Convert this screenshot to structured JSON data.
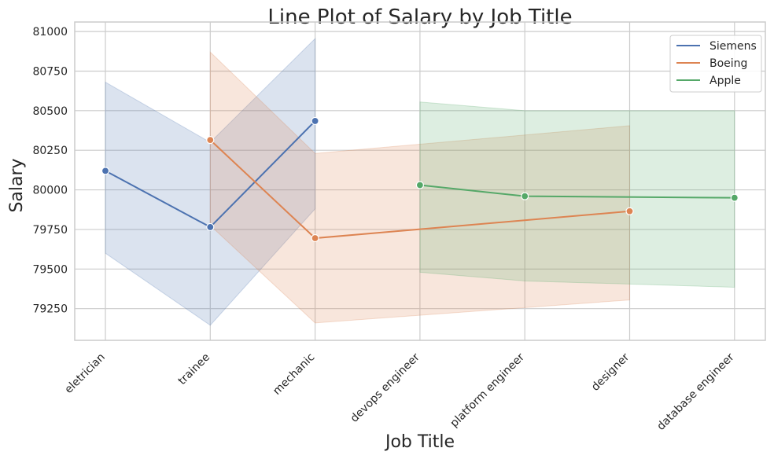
{
  "chart_data": {
    "type": "line",
    "title": "Line Plot of Salary by Job Title",
    "xlabel": "Job Title",
    "ylabel": "Salary",
    "categories": [
      "eletrician",
      "trainee",
      "mechanic",
      "devops engineer",
      "platform engineer",
      "designer",
      "database engineer"
    ],
    "ylim": [
      79050,
      81060
    ],
    "yticks": [
      79250,
      79500,
      79750,
      80000,
      80250,
      80500,
      80750,
      81000
    ],
    "grid": true,
    "legend_position": "top-right",
    "series": [
      {
        "name": "Siemens",
        "color": "#4c72b0",
        "points": [
          {
            "x": "eletrician",
            "y": 80120,
            "lo": 79600,
            "hi": 80680
          },
          {
            "x": "trainee",
            "y": 79765,
            "lo": 79145,
            "hi": 80300
          },
          {
            "x": "mechanic",
            "y": 80435,
            "lo": 79880,
            "hi": 80955
          }
        ]
      },
      {
        "name": "Boeing",
        "color": "#dd8452",
        "points": [
          {
            "x": "trainee",
            "y": 80315,
            "lo": 79775,
            "hi": 80870
          },
          {
            "x": "mechanic",
            "y": 79695,
            "lo": 79160,
            "hi": 80230
          },
          {
            "x": "designer",
            "y": 79865,
            "lo": 79305,
            "hi": 80405
          }
        ]
      },
      {
        "name": "Apple",
        "color": "#55a868",
        "points": [
          {
            "x": "devops engineer",
            "y": 80030,
            "lo": 79480,
            "hi": 80555
          },
          {
            "x": "platform engineer",
            "y": 79960,
            "lo": 79425,
            "hi": 80500
          },
          {
            "x": "database engineer",
            "y": 79950,
            "lo": 79385,
            "hi": 80500
          }
        ]
      }
    ]
  }
}
